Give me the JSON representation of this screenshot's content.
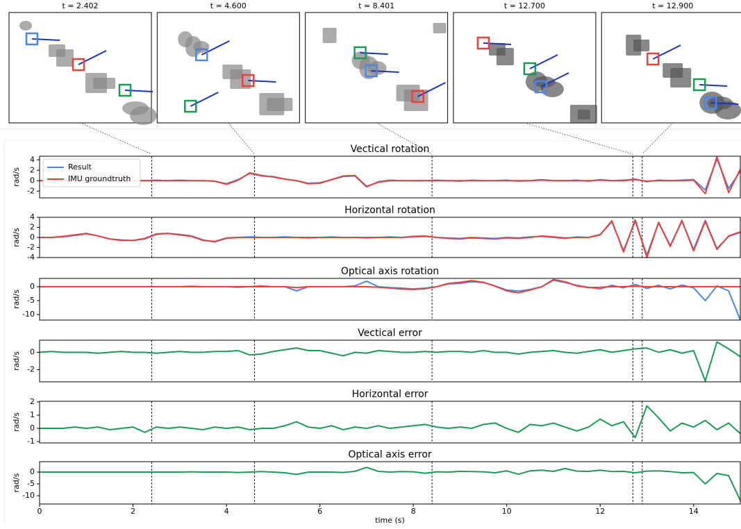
{
  "snapshots": [
    {
      "label": "t = 2.402",
      "t": 2.402
    },
    {
      "label": "t = 4.600",
      "t": 4.6
    },
    {
      "label": "t = 8.401",
      "t": 8.401
    },
    {
      "label": "t = 12.700",
      "t": 12.7
    },
    {
      "label": "t = 12.900",
      "t": 12.9
    }
  ],
  "chart_data": [
    {
      "type": "line",
      "title": "Vectical rotation",
      "ylabel": "rad/s",
      "legend": "upper left",
      "x": [
        0,
        0.25,
        0.5,
        0.75,
        1,
        1.25,
        1.5,
        1.75,
        2,
        2.25,
        2.5,
        2.75,
        3,
        3.25,
        3.5,
        3.75,
        4,
        4.25,
        4.5,
        4.75,
        5,
        5.25,
        5.5,
        5.75,
        6,
        6.25,
        6.5,
        6.75,
        7,
        7.25,
        7.5,
        7.75,
        8,
        8.25,
        8.5,
        8.75,
        9,
        9.25,
        9.5,
        9.75,
        10,
        10.25,
        10.5,
        10.75,
        11,
        11.25,
        11.5,
        11.75,
        12,
        12.25,
        12.5,
        12.75,
        13,
        13.25,
        13.5,
        13.75,
        14,
        14.25,
        14.5,
        14.75,
        15
      ],
      "xlim": [
        0,
        15
      ],
      "ylim": [
        -3.3,
        4.7
      ],
      "yticks": [
        -2,
        0,
        2,
        4
      ],
      "series": [
        {
          "name": "Result",
          "color": "#4a86e8",
          "values": [
            0,
            0,
            0.1,
            0,
            0,
            0,
            0.1,
            0,
            0,
            0,
            0.1,
            0,
            0.1,
            0,
            0,
            -0.1,
            -0.6,
            0.2,
            1.4,
            0.9,
            0.8,
            0.3,
            0,
            -0.5,
            -0.4,
            0.2,
            0.8,
            0.9,
            -1.2,
            -0.2,
            0.1,
            0,
            0,
            0,
            0.1,
            0,
            -0.1,
            0.1,
            0,
            0,
            0.1,
            -0.1,
            0,
            0.2,
            0,
            0,
            0.1,
            -0.1,
            0.2,
            0,
            0.1,
            0.3,
            -0.2,
            0.1,
            0,
            0.1,
            0.2,
            -1.8,
            4.2,
            -1.5,
            1.8
          ]
        },
        {
          "name": "IMU groundtruth",
          "color": "#e8413b",
          "values": [
            0,
            0,
            0,
            0,
            0,
            0,
            0,
            0,
            0,
            0,
            0,
            0,
            0,
            0,
            0,
            -0.1,
            -0.7,
            0.1,
            1.5,
            1,
            0.7,
            0.3,
            0,
            -0.6,
            -0.5,
            0.2,
            0.9,
            1,
            -1.1,
            -0.3,
            0,
            0,
            0,
            0,
            0,
            0,
            0,
            0,
            0,
            0,
            0,
            0,
            0,
            0.1,
            0,
            0,
            0,
            0,
            0.1,
            0,
            0,
            0.2,
            -0.1,
            0,
            0,
            0,
            0.1,
            -2.5,
            4.6,
            -2.3,
            2.2
          ]
        }
      ]
    },
    {
      "type": "line",
      "title": "Horizontal rotation",
      "ylabel": "rad/s",
      "x": [
        0,
        0.25,
        0.5,
        0.75,
        1,
        1.25,
        1.5,
        1.75,
        2,
        2.25,
        2.5,
        2.75,
        3,
        3.25,
        3.5,
        3.75,
        4,
        4.25,
        4.5,
        4.75,
        5,
        5.25,
        5.5,
        5.75,
        6,
        6.25,
        6.5,
        6.75,
        7,
        7.25,
        7.5,
        7.75,
        8,
        8.25,
        8.5,
        8.75,
        9,
        9.25,
        9.5,
        9.75,
        10,
        10.25,
        10.5,
        10.75,
        11,
        11.25,
        11.5,
        11.75,
        12,
        12.25,
        12.5,
        12.75,
        13,
        13.25,
        13.5,
        13.75,
        14,
        14.25,
        14.5,
        14.75,
        15
      ],
      "xlim": [
        0,
        15
      ],
      "ylim": [
        -4,
        4
      ],
      "yticks": [
        -4,
        -2,
        0,
        2,
        4
      ],
      "series": [
        {
          "name": "Result",
          "color": "#4a86e8",
          "values": [
            0,
            0,
            0.1,
            0.4,
            0.7,
            0.3,
            -0.3,
            -0.5,
            -0.6,
            -0.3,
            0.6,
            0.8,
            0.6,
            0.3,
            -0.5,
            -0.9,
            -0.2,
            0,
            0.1,
            0,
            0,
            0.1,
            0,
            -0.1,
            0,
            0.1,
            0,
            0,
            -0.1,
            0,
            0.1,
            0,
            0.1,
            0.2,
            0,
            -0.1,
            -0.2,
            0,
            -0.1,
            -0.2,
            0,
            -0.1,
            0.1,
            0.2,
            0,
            -0.2,
            0.1,
            0,
            0.6,
            3.1,
            -2.6,
            3.2,
            -3.5,
            2.9,
            -1.6,
            3.2,
            -2.4,
            3.4,
            -2.2,
            0.2,
            1
          ]
        },
        {
          "name": "IMU groundtruth",
          "color": "#e8413b",
          "values": [
            0,
            0,
            0.2,
            0.5,
            0.8,
            0.3,
            -0.3,
            -0.6,
            -0.6,
            -0.2,
            0.7,
            0.8,
            0.5,
            0.2,
            -0.6,
            -0.8,
            -0.1,
            0,
            0,
            0,
            0,
            0,
            0,
            0,
            0,
            0,
            0,
            0,
            0,
            0,
            0,
            0,
            0.2,
            0.3,
            0,
            -0.2,
            -0.3,
            -0.1,
            -0.2,
            -0.3,
            -0.1,
            -0.2,
            0,
            0.3,
            0.1,
            -0.1,
            0,
            0,
            0.5,
            3.3,
            -2.9,
            3.5,
            -4,
            3,
            -1.8,
            3.4,
            -2.7,
            3.2,
            -2.4,
            0.3,
            1.1
          ]
        }
      ]
    },
    {
      "type": "line",
      "title": "Optical axis rotation",
      "ylabel": "rad/s",
      "x": [
        0,
        0.25,
        0.5,
        0.75,
        1,
        1.25,
        1.5,
        1.75,
        2,
        2.25,
        2.5,
        2.75,
        3,
        3.25,
        3.5,
        3.75,
        4,
        4.25,
        4.5,
        4.75,
        5,
        5.25,
        5.5,
        5.75,
        6,
        6.25,
        6.5,
        6.75,
        7,
        7.25,
        7.5,
        7.75,
        8,
        8.25,
        8.5,
        8.75,
        9,
        9.25,
        9.5,
        9.75,
        10,
        10.25,
        10.5,
        10.75,
        11,
        11.25,
        11.5,
        11.75,
        12,
        12.25,
        12.5,
        12.75,
        13,
        13.25,
        13.5,
        13.75,
        14,
        14.25,
        14.5,
        14.75,
        15
      ],
      "xlim": [
        0,
        15
      ],
      "ylim": [
        -12,
        3
      ],
      "yticks": [
        -10,
        -5,
        0
      ],
      "series": [
        {
          "name": "Result",
          "color": "#4a86e8",
          "values": [
            0,
            0,
            0,
            0,
            0,
            0,
            0,
            0,
            0,
            0,
            0,
            0,
            0,
            0.2,
            0,
            0,
            0,
            -0.2,
            0,
            0.3,
            0,
            0,
            -1.5,
            0,
            0,
            0,
            0,
            0.3,
            2,
            0,
            -0.3,
            -0.5,
            -0.8,
            -0.5,
            0,
            1,
            1.2,
            1.8,
            1.5,
            0.3,
            -1.2,
            -1.6,
            -1,
            0,
            2.3,
            1.5,
            0.5,
            -0.2,
            -0.8,
            0.5,
            -0.4,
            0.8,
            -0.6,
            0.5,
            -0.8,
            0.6,
            -0.4,
            -5,
            0.3,
            -1.5,
            -12
          ]
        },
        {
          "name": "IMU groundtruth",
          "color": "#e8413b",
          "values": [
            0,
            0,
            0,
            0,
            0,
            0,
            0,
            0,
            0,
            0,
            0,
            0,
            0,
            0,
            0,
            0,
            0,
            0,
            0,
            0,
            0,
            0,
            -0.3,
            0,
            0,
            0,
            0,
            0,
            0,
            -0.2,
            -0.5,
            -0.8,
            -1,
            -0.7,
            0,
            1.2,
            1.6,
            2.2,
            1.6,
            0.2,
            -1.5,
            -2.2,
            -1.2,
            0,
            2.6,
            1.8,
            0.3,
            -0.3,
            -0.2,
            0,
            0,
            0.2,
            0,
            0,
            0,
            0,
            0,
            0,
            0,
            0,
            0
          ]
        }
      ]
    },
    {
      "type": "line",
      "title": "Vectical error",
      "ylabel": "rad/s",
      "x": [
        0,
        0.25,
        0.5,
        0.75,
        1,
        1.25,
        1.5,
        1.75,
        2,
        2.25,
        2.5,
        2.75,
        3,
        3.25,
        3.5,
        3.75,
        4,
        4.25,
        4.5,
        4.75,
        5,
        5.25,
        5.5,
        5.75,
        6,
        6.25,
        6.5,
        6.75,
        7,
        7.25,
        7.5,
        7.75,
        8,
        8.25,
        8.5,
        8.75,
        9,
        9.25,
        9.5,
        9.75,
        10,
        10.25,
        10.5,
        10.75,
        11,
        11.25,
        11.5,
        11.75,
        12,
        12.25,
        12.5,
        12.75,
        13,
        13.25,
        13.5,
        13.75,
        14,
        14.25,
        14.5,
        14.75,
        15
      ],
      "xlim": [
        0,
        15
      ],
      "ylim": [
        -3.4,
        1.4
      ],
      "yticks": [
        -2,
        0
      ],
      "series": [
        {
          "color": "#1a9a55",
          "values": [
            0,
            0.1,
            0,
            0,
            0,
            -0.1,
            0,
            0.1,
            0,
            0,
            -0.1,
            0,
            0.1,
            0,
            0,
            0.1,
            0.1,
            0.2,
            -0.3,
            -0.2,
            0.1,
            0.3,
            0.5,
            0.2,
            0.2,
            -0.1,
            -0.4,
            0,
            -0.1,
            0.2,
            0.1,
            0,
            0,
            0.1,
            0,
            0.1,
            0.1,
            0,
            0.2,
            0,
            0,
            -0.2,
            0,
            0.1,
            0.2,
            0,
            -0.1,
            0.1,
            0.3,
            0,
            0.2,
            0.4,
            0.5,
            0,
            0.3,
            -0.1,
            0.2,
            -3.3,
            1.2,
            0.4,
            -0.5
          ]
        }
      ]
    },
    {
      "type": "line",
      "title": "Horizontal error",
      "ylabel": "rad/s",
      "x": [
        0,
        0.25,
        0.5,
        0.75,
        1,
        1.25,
        1.5,
        1.75,
        2,
        2.25,
        2.5,
        2.75,
        3,
        3.25,
        3.5,
        3.75,
        4,
        4.25,
        4.5,
        4.75,
        5,
        5.25,
        5.5,
        5.75,
        6,
        6.25,
        6.5,
        6.75,
        7,
        7.25,
        7.5,
        7.75,
        8,
        8.25,
        8.5,
        8.75,
        9,
        9.25,
        9.5,
        9.75,
        10,
        10.25,
        10.5,
        10.75,
        11,
        11.25,
        11.5,
        11.75,
        12,
        12.25,
        12.5,
        12.75,
        13,
        13.25,
        13.5,
        13.75,
        14,
        14.25,
        14.5,
        14.75,
        15
      ],
      "xlim": [
        0,
        15
      ],
      "ylim": [
        -1.1,
        2.05
      ],
      "yticks": [
        -1,
        0,
        1,
        2
      ],
      "series": [
        {
          "color": "#1a9a55",
          "values": [
            0,
            0,
            0,
            0.1,
            0,
            0.1,
            -0.1,
            0,
            0.1,
            -0.3,
            0.1,
            0,
            0.1,
            0,
            -0.1,
            0.1,
            0,
            0.1,
            -0.1,
            0,
            0,
            0.2,
            0.5,
            0.1,
            0,
            0.2,
            -0.1,
            0.1,
            0,
            0.2,
            0,
            0.1,
            0.2,
            0.3,
            0.1,
            0,
            0.1,
            0,
            0.3,
            0.4,
            0,
            -0.3,
            0.3,
            0.2,
            0.4,
            0.1,
            -0.2,
            0.1,
            0.7,
            0.2,
            0.5,
            -0.7,
            1.7,
            0.8,
            -0.2,
            0.4,
            0.1,
            0.6,
            -0.1,
            0.4,
            -0.4
          ]
        }
      ]
    },
    {
      "type": "line",
      "title": "Optical axis error",
      "ylabel": "rad/s",
      "xlabel": "time (s)",
      "x": [
        0,
        0.25,
        0.5,
        0.75,
        1,
        1.25,
        1.5,
        1.75,
        2,
        2.25,
        2.5,
        2.75,
        3,
        3.25,
        3.5,
        3.75,
        4,
        4.25,
        4.5,
        4.75,
        5,
        5.25,
        5.5,
        5.75,
        6,
        6.25,
        6.5,
        6.75,
        7,
        7.25,
        7.5,
        7.75,
        8,
        8.25,
        8.5,
        8.75,
        9,
        9.25,
        9.5,
        9.75,
        10,
        10.25,
        10.5,
        10.75,
        11,
        11.25,
        11.5,
        11.75,
        12,
        12.25,
        12.5,
        12.75,
        13,
        13.25,
        13.5,
        13.75,
        14,
        14.25,
        14.5,
        14.75,
        15
      ],
      "xlim": [
        0,
        15
      ],
      "xticks": [
        0,
        2,
        4,
        6,
        8,
        10,
        12,
        14
      ],
      "ylim": [
        -13.5,
        4.4
      ],
      "yticks": [
        -10,
        -5,
        0
      ],
      "series": [
        {
          "color": "#1a9a55",
          "values": [
            0,
            0,
            0,
            0,
            0,
            0,
            0,
            0,
            0,
            0,
            0,
            0,
            0,
            0.1,
            0,
            0,
            0,
            -0.2,
            0,
            0.2,
            0,
            -0.3,
            -1,
            0,
            0,
            0,
            -0.2,
            0.3,
            2,
            0.3,
            0,
            0.2,
            0.1,
            -0.5,
            0.1,
            0,
            0.3,
            0.2,
            0.1,
            -0.3,
            0.5,
            -0.9,
            0.5,
            0.8,
            0.3,
            1.5,
            0.4,
            0.3,
            0.8,
            0.2,
            0.3,
            -0.3,
            0.4,
            0.5,
            0.2,
            -0.3,
            -0.2,
            -5,
            -0.6,
            -1.5,
            -12
          ]
        }
      ]
    }
  ]
}
